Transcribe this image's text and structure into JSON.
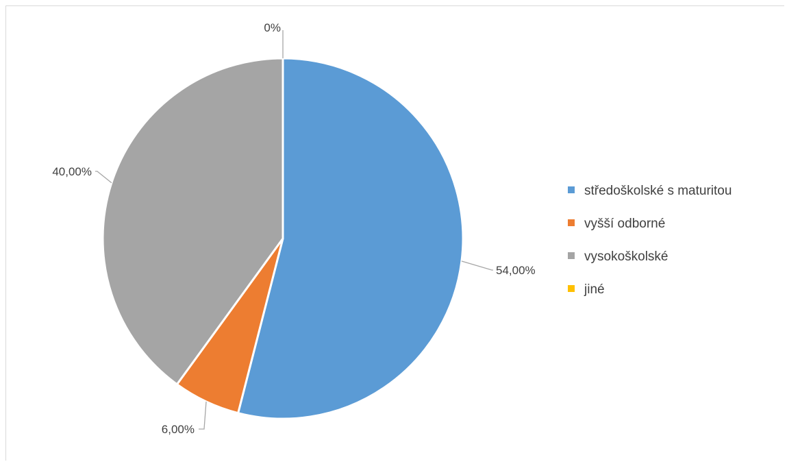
{
  "chart_data": {
    "type": "pie",
    "title": "",
    "legend_position": "right",
    "categories": [
      "středoškolské s maturitou",
      "vyšší odborné",
      "vysokoškolské",
      "jiné"
    ],
    "values": [
      54,
      6,
      40,
      0
    ],
    "labels": [
      "54,00%",
      "6,00%",
      "40,00%",
      "0%"
    ],
    "colors": [
      "#5b9bd5",
      "#ed7d31",
      "#a5a5a5",
      "#ffc000"
    ],
    "start_angle_deg": 0,
    "direction": "clockwise"
  }
}
